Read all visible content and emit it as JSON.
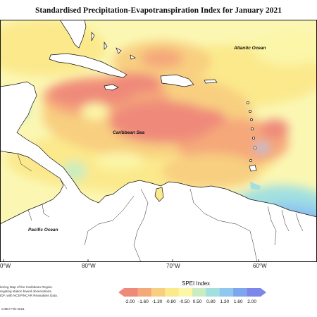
{
  "title": "Standardised Precipitation-Evapotranspiration Index for January 2021",
  "map": {
    "labels": {
      "atlantic": "Atlantic Ocean",
      "caribbean": "Caribbean Sea",
      "pacific": "Pacific Ocean"
    },
    "longitudes": [
      "0°W",
      "80°W",
      "70°W",
      "60°W"
    ]
  },
  "credits": {
    "line1": "itoring Map of the Caribbean Region.",
    "line2": "regating station based observations,",
    "line3": "IDF, with NCEP/NCAR Reanalysis Data.",
    "line4": "CIMH Feb-2021"
  },
  "legend": {
    "title": "SPEI Index",
    "ticks": [
      "-2.00",
      "-1.60",
      "-1.30",
      "-0.80",
      "-0.50",
      "0.50",
      "0.80",
      "1.30",
      "1.60",
      "2.00"
    ],
    "colors": [
      "#ef8a7a",
      "#f5a87a",
      "#f8cf80",
      "#fbe98c",
      "#fbf6a8",
      "#c9ecc1",
      "#a2e0e0",
      "#8fc7ee",
      "#7ea6ee",
      "#7d87ea"
    ]
  }
}
